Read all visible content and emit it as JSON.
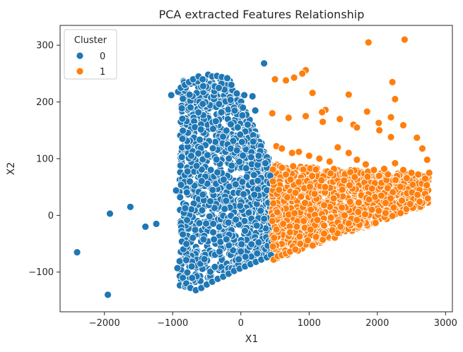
{
  "chart_data": {
    "type": "scatter",
    "title": "PCA extracted Features Relationship",
    "xlabel": "X1",
    "ylabel": "X2",
    "xlim": [
      -2650,
      3100
    ],
    "ylim": [
      -170,
      335
    ],
    "xticks": [
      -2000,
      -1000,
      0,
      1000,
      2000,
      3000
    ],
    "yticks": [
      -100,
      0,
      100,
      200,
      300
    ],
    "xtick_labels": [
      "−2000",
      "−1000",
      "0",
      "1000",
      "2000",
      "3000"
    ],
    "ytick_labels": [
      "−100",
      "0",
      "100",
      "200",
      "300"
    ],
    "grid": false,
    "legend": {
      "title": "Cluster",
      "position": "top-left",
      "entries": [
        {
          "label": "0",
          "color": "#1f77b4"
        },
        {
          "label": "1",
          "color": "#ff7f0e"
        }
      ]
    },
    "series": [
      {
        "name": "0",
        "color": "#1f77b4",
        "points": [
          [
            -2400,
            -65
          ],
          [
            -1950,
            -140
          ],
          [
            -1920,
            3
          ],
          [
            -1620,
            15
          ],
          [
            -1400,
            -20
          ],
          [
            -1240,
            -15
          ],
          [
            -950,
            44
          ],
          [
            -930,
            -93
          ],
          [
            -1020,
            212
          ],
          [
            -920,
            218
          ],
          [
            -880,
            225
          ],
          [
            340,
            268
          ],
          [
            50,
            212
          ],
          [
            170,
            210
          ],
          [
            210,
            185
          ],
          [
            -820,
            230
          ],
          [
            -760,
            235
          ],
          [
            -700,
            240
          ],
          [
            -620,
            245
          ],
          [
            -560,
            240
          ],
          [
            -480,
            248
          ],
          [
            -420,
            245
          ],
          [
            -350,
            246
          ],
          [
            -280,
            244
          ],
          [
            -200,
            242
          ],
          [
            -140,
            230
          ],
          [
            -60,
            215
          ],
          [
            30,
            190
          ],
          [
            100,
            160
          ],
          [
            180,
            130
          ],
          [
            260,
            105
          ],
          [
            360,
            92
          ],
          [
            430,
            70
          ],
          [
            -850,
            -110
          ],
          [
            -800,
            -120
          ],
          [
            -740,
            -128
          ],
          [
            -660,
            -132
          ],
          [
            -580,
            -128
          ],
          [
            -500,
            -122
          ],
          [
            -420,
            -117
          ],
          [
            -340,
            -112
          ],
          [
            -260,
            -108
          ],
          [
            -180,
            -103
          ],
          [
            -100,
            -98
          ],
          [
            -20,
            -94
          ],
          [
            60,
            -90
          ],
          [
            140,
            -86
          ],
          [
            220,
            -82
          ],
          [
            300,
            -78
          ],
          [
            380,
            -74
          ],
          [
            440,
            -70
          ]
        ]
      },
      {
        "name": "1",
        "color": "#ff7f0e",
        "points": [
          [
            2400,
            310
          ],
          [
            1870,
            305
          ],
          [
            950,
            256
          ],
          [
            900,
            250
          ],
          [
            780,
            243
          ],
          [
            660,
            238
          ],
          [
            500,
            240
          ],
          [
            1050,
            216
          ],
          [
            1580,
            213
          ],
          [
            1240,
            186
          ],
          [
            1190,
            182
          ],
          [
            1850,
            183
          ],
          [
            2220,
            235
          ],
          [
            2260,
            205
          ],
          [
            2200,
            173
          ],
          [
            2020,
            163
          ],
          [
            2380,
            159
          ],
          [
            2030,
            150
          ],
          [
            1650,
            160
          ],
          [
            2200,
            138
          ],
          [
            2580,
            137
          ],
          [
            2660,
            118
          ],
          [
            2730,
            98
          ],
          [
            2760,
            75
          ],
          [
            460,
            180
          ],
          [
            700,
            172
          ],
          [
            950,
            175
          ],
          [
            1200,
            165
          ],
          [
            1450,
            170
          ],
          [
            1700,
            155
          ],
          [
            520,
            122
          ],
          [
            600,
            118
          ],
          [
            750,
            110
          ],
          [
            850,
            112
          ],
          [
            1000,
            105
          ],
          [
            1150,
            100
          ],
          [
            1300,
            95
          ],
          [
            1420,
            120
          ],
          [
            1580,
            110
          ],
          [
            1700,
            98
          ],
          [
            1830,
            90
          ],
          [
            1950,
            80
          ],
          [
            2100,
            82
          ],
          [
            2260,
            92
          ],
          [
            2380,
            80
          ],
          [
            2500,
            75
          ],
          [
            2600,
            72
          ],
          [
            2700,
            65
          ],
          [
            470,
            60
          ],
          [
            560,
            45
          ],
          [
            680,
            32
          ],
          [
            800,
            40
          ],
          [
            940,
            22
          ],
          [
            1080,
            38
          ],
          [
            1220,
            18
          ],
          [
            1360,
            30
          ],
          [
            1480,
            14
          ],
          [
            1600,
            24
          ],
          [
            1740,
            10
          ],
          [
            1880,
            28
          ],
          [
            2000,
            12
          ],
          [
            2120,
            22
          ],
          [
            2240,
            14
          ],
          [
            2360,
            26
          ],
          [
            2480,
            20
          ],
          [
            2620,
            24
          ],
          [
            2700,
            38
          ],
          [
            2740,
            30
          ],
          [
            460,
            -10
          ],
          [
            520,
            -25
          ],
          [
            620,
            -15
          ],
          [
            720,
            -30
          ],
          [
            820,
            -20
          ],
          [
            920,
            -10
          ],
          [
            1020,
            -25
          ],
          [
            1120,
            -8
          ],
          [
            1220,
            -18
          ],
          [
            1320,
            -4
          ],
          [
            1420,
            -12
          ],
          [
            1520,
            0
          ],
          [
            1620,
            -6
          ],
          [
            1720,
            6
          ],
          [
            1820,
            2
          ],
          [
            1920,
            10
          ],
          [
            2020,
            8
          ],
          [
            2120,
            4
          ],
          [
            470,
            -55
          ],
          [
            550,
            -68
          ],
          [
            650,
            -62
          ],
          [
            760,
            -55
          ],
          [
            870,
            -50
          ],
          [
            980,
            -44
          ],
          [
            1100,
            -38
          ],
          [
            1220,
            -32
          ],
          [
            1340,
            -26
          ],
          [
            1460,
            -20
          ],
          [
            1580,
            -14
          ],
          [
            1700,
            -8
          ],
          [
            480,
            -78
          ],
          [
            540,
            -72
          ],
          [
            600,
            -70
          ],
          [
            660,
            -67
          ],
          [
            720,
            -64
          ],
          [
            800,
            -60
          ]
        ]
      }
    ]
  }
}
